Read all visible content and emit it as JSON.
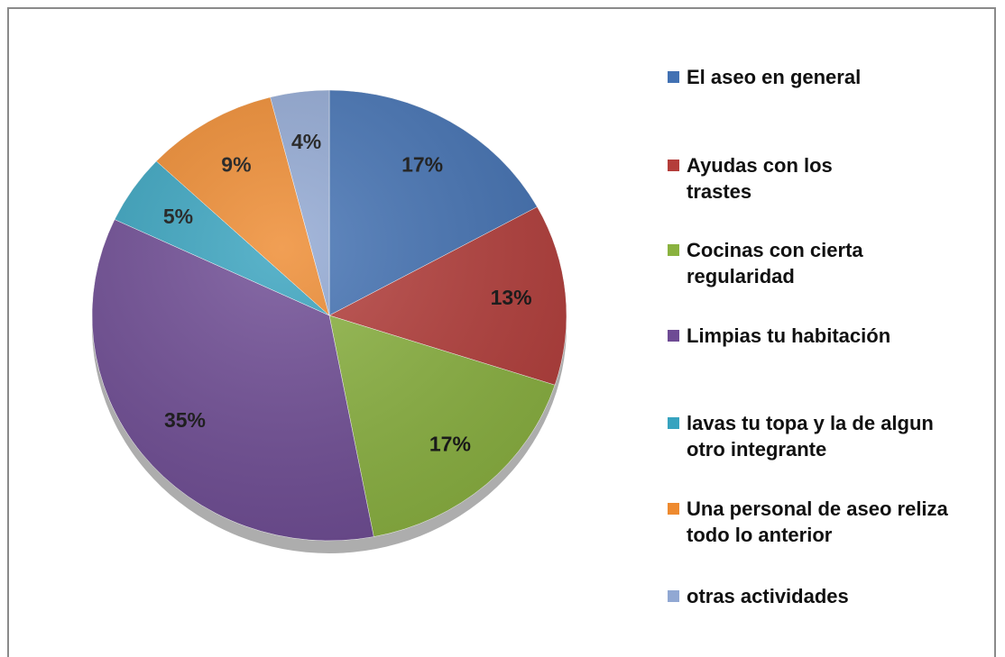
{
  "chart_data": {
    "type": "pie",
    "categories": [
      "El aseo en general",
      "Ayudas con los trastes",
      "Cocinas con cierta regularidad",
      "Limpias tu habitación",
      "lavas tu topa y la de algun otro integrante",
      "Una personal de aseo reliza todo lo anterior",
      "otras actividades"
    ],
    "values": [
      17,
      13,
      17,
      35,
      5,
      9,
      4
    ],
    "value_labels": [
      "17%",
      "13%",
      "17%",
      "35%",
      "5%",
      "9%",
      "4%"
    ],
    "colors": [
      "#4271b3",
      "#b43d3a",
      "#8ab23f",
      "#6e4b94",
      "#37a3bf",
      "#ee8a2f",
      "#91a8d3"
    ],
    "legend": "right"
  }
}
